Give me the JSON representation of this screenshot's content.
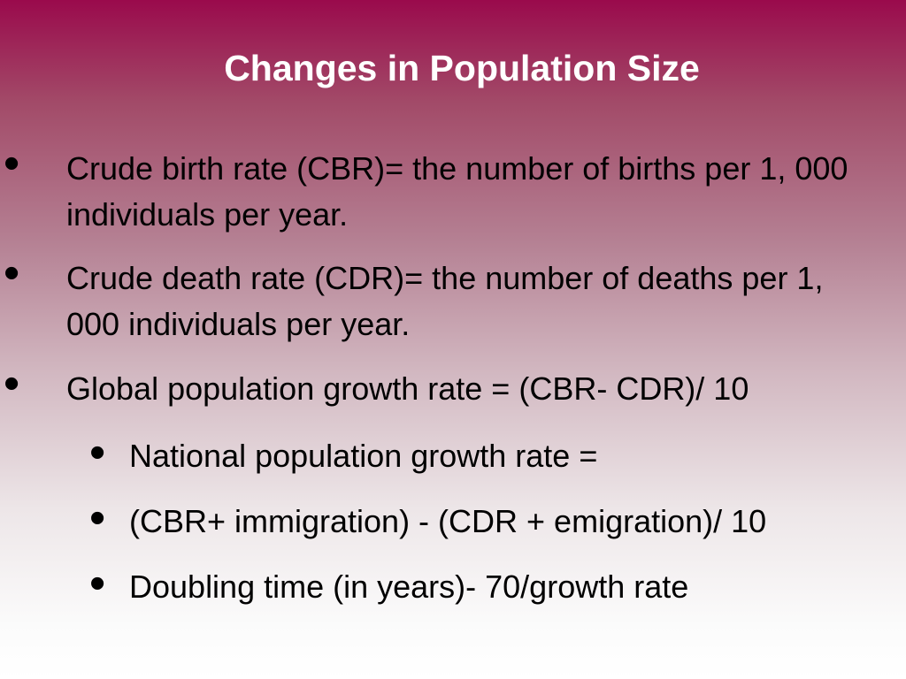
{
  "slide": {
    "title": "Changes in Population Size",
    "bullets": [
      "Crude birth rate (CBR)= the number of births per 1, 000 individuals per year.",
      "Crude death rate (CDR)= the number of deaths per 1, 000 individuals per year.",
      "Global population growth rate = (CBR- CDR)/ 10"
    ],
    "sub_bullets": [
      "National population growth rate =",
      "(CBR+ immigration) - (CDR + emigration)/ 10",
      "Doubling time (in years)- 70/growth rate"
    ],
    "bullet_glyph": "•"
  }
}
